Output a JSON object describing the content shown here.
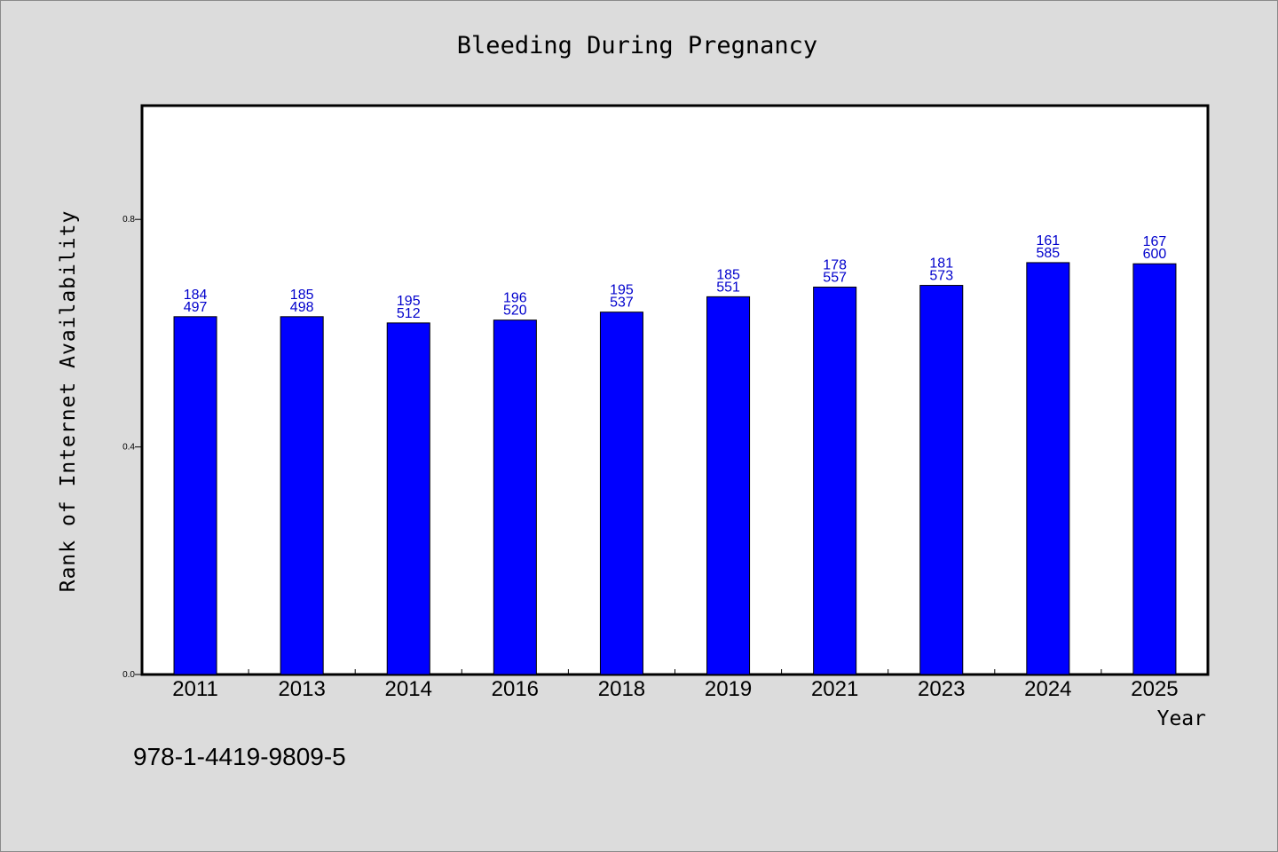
{
  "chart_data": {
    "type": "bar",
    "title": "Bleeding During Pregnancy",
    "xlabel": "Year",
    "ylabel": "Rank of Internet Availability",
    "categories": [
      "2011",
      "2013",
      "2014",
      "2016",
      "2018",
      "2019",
      "2021",
      "2023",
      "2024",
      "2025"
    ],
    "values": [
      0.629,
      0.629,
      0.618,
      0.623,
      0.637,
      0.664,
      0.681,
      0.684,
      0.724,
      0.722
    ],
    "label_top": [
      "184",
      "185",
      "195",
      "196",
      "195",
      "185",
      "178",
      "181",
      "161",
      "167"
    ],
    "label_bottom": [
      "497",
      "498",
      "512",
      "520",
      "537",
      "551",
      "557",
      "573",
      "585",
      "600"
    ],
    "yticks": [
      "0.0",
      "0.4",
      "0.8"
    ],
    "ylim": [
      0,
      1.0
    ],
    "bar_color": "#0000ff",
    "label_color": "#0000cc",
    "grid": false
  },
  "footer": {
    "isbn": "978-1-4419-9809-5"
  }
}
